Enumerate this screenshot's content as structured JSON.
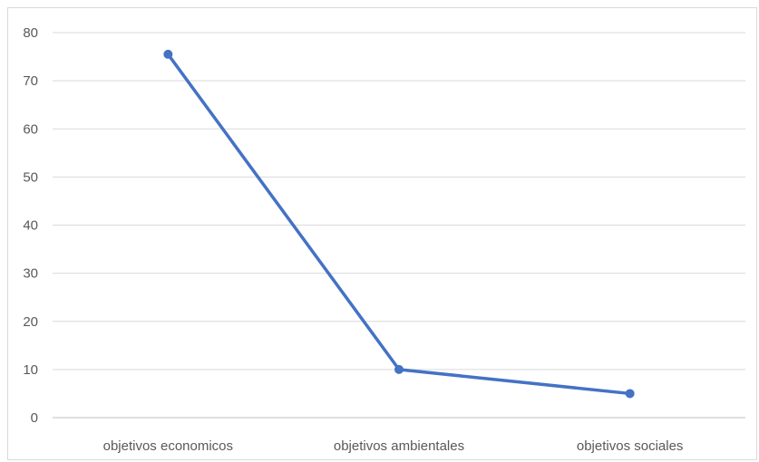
{
  "chart_data": {
    "type": "line",
    "title": "",
    "xlabel": "",
    "ylabel": "",
    "categories": [
      "objetivos economicos",
      "objetivos ambientales",
      "objetivos sociales"
    ],
    "series": [
      {
        "values": [
          75.5,
          10,
          5
        ]
      }
    ],
    "ylim": [
      0,
      80
    ],
    "yticks": [
      0,
      10,
      20,
      30,
      40,
      50,
      60,
      70,
      80
    ],
    "grid": true,
    "legend": "none",
    "colors": {
      "line": "#4472c4",
      "grid": "#d9d9d9",
      "text": "#595959"
    }
  }
}
